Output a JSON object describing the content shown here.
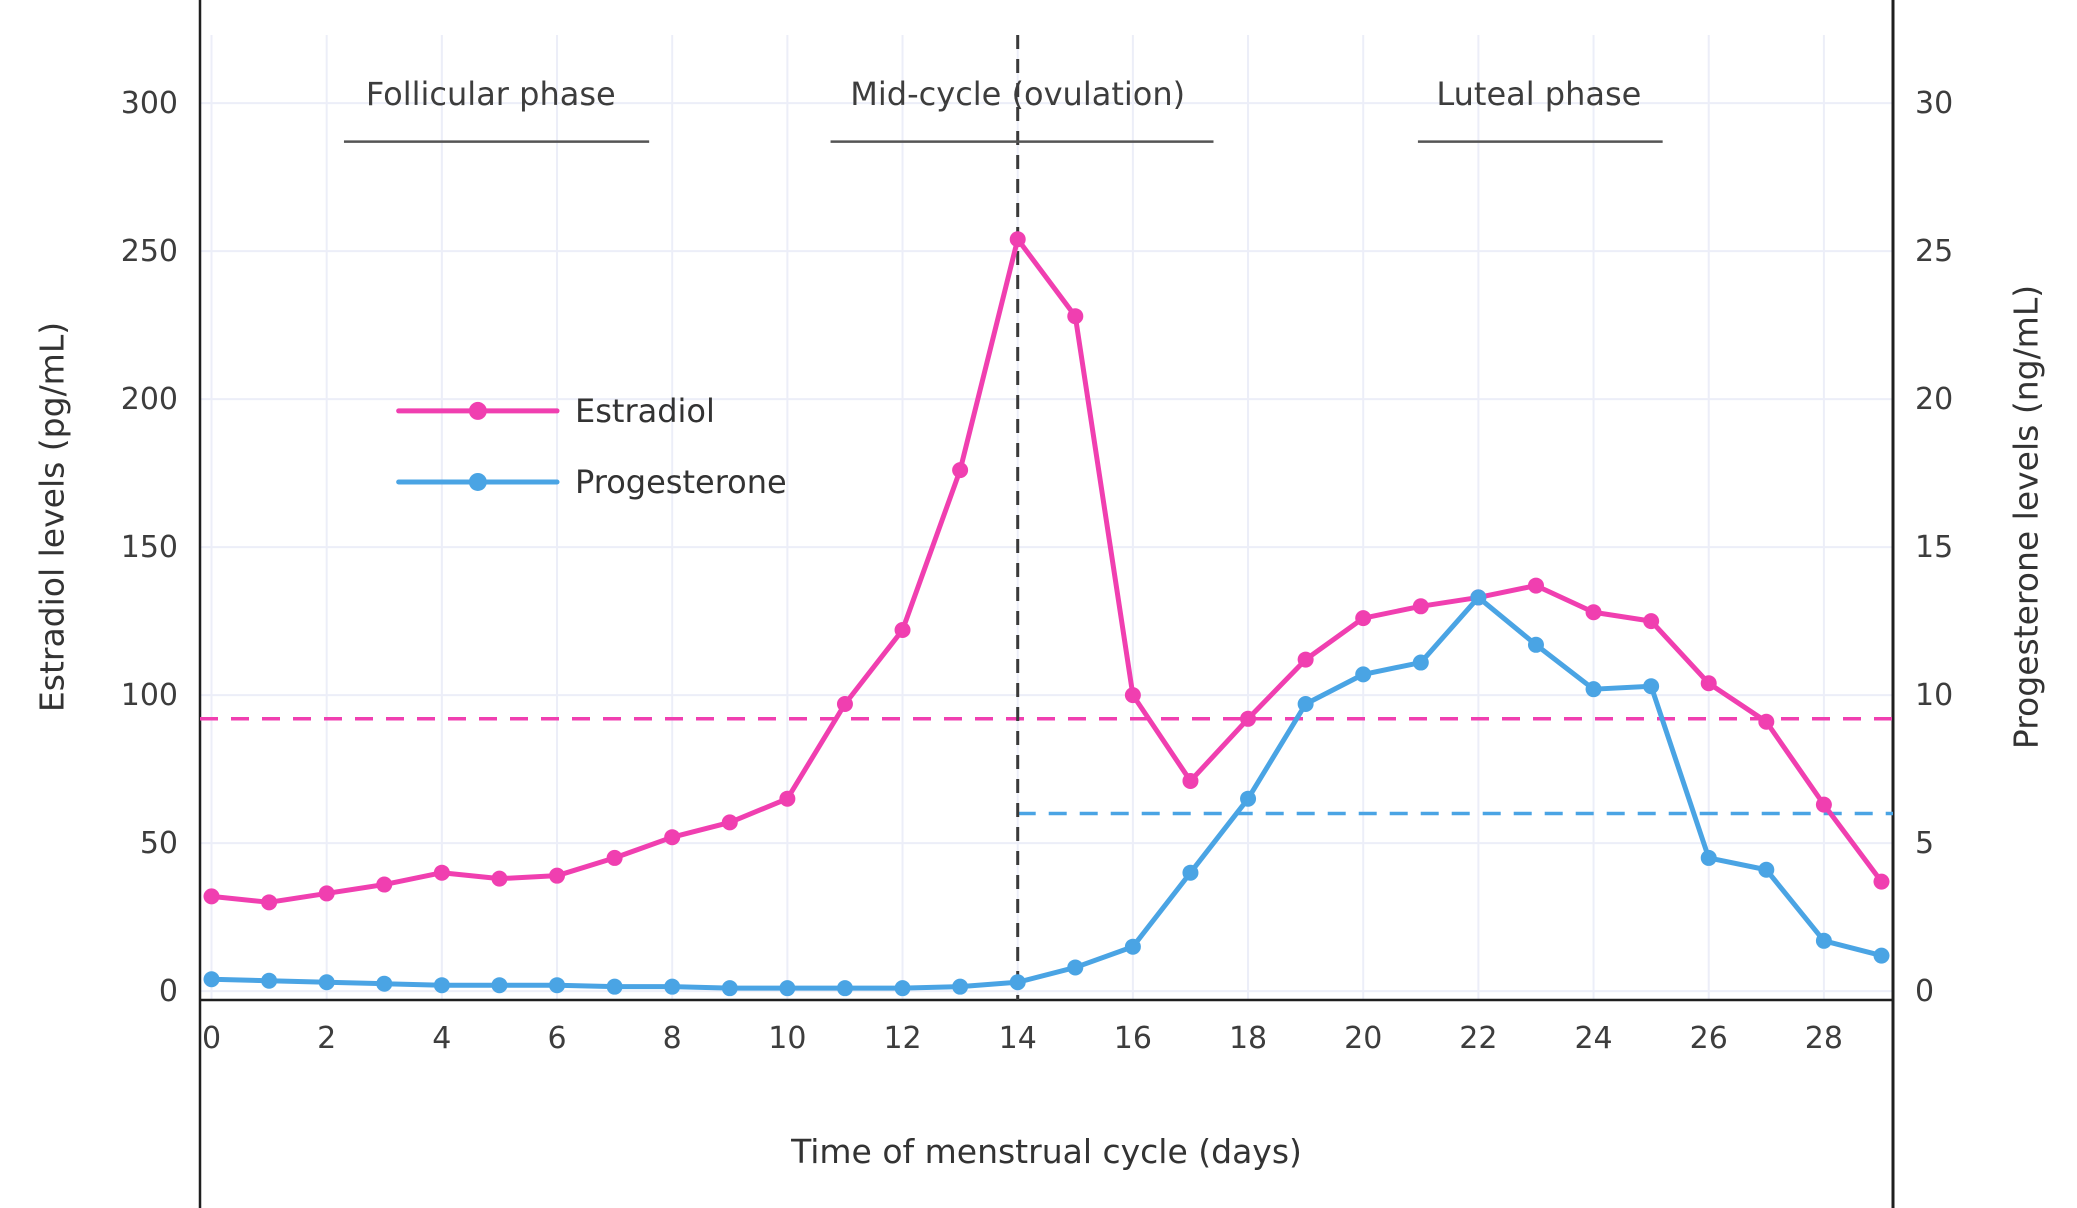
{
  "chart_data": {
    "type": "line",
    "title": "",
    "xlabel": "Time of menstrual cycle (days)",
    "ylabel_left": "Estradiol levels (pg/mL)",
    "ylabel_right": "Progesterone levels (ng/mL)",
    "x": [
      0,
      1,
      2,
      3,
      4,
      5,
      6,
      7,
      8,
      9,
      10,
      11,
      12,
      13,
      14,
      15,
      16,
      17,
      18,
      19,
      20,
      21,
      22,
      23,
      24,
      25,
      26,
      27,
      28,
      29
    ],
    "x_ticks": [
      0,
      2,
      4,
      6,
      8,
      10,
      12,
      14,
      16,
      18,
      20,
      22,
      24,
      26,
      28
    ],
    "y_ticks_left": [
      0,
      50,
      100,
      150,
      200,
      250,
      300
    ],
    "y_ticks_right": [
      0,
      5,
      10,
      15,
      20,
      25,
      30
    ],
    "xlim": [
      -0.2,
      29.2
    ],
    "ylim_left": [
      -3,
      323
    ],
    "ylim_right": [
      -0.3,
      32.3
    ],
    "grid": true,
    "legend_position": "upper-left-inside",
    "series": [
      {
        "name": "Estradiol",
        "axis": "left",
        "color": "#f03fb0",
        "values": [
          32,
          30,
          33,
          36,
          40,
          38,
          39,
          45,
          52,
          57,
          65,
          97,
          122,
          176,
          254,
          228,
          100,
          71,
          92,
          112,
          126,
          130,
          133,
          137,
          128,
          125,
          104,
          91,
          63,
          37
        ]
      },
      {
        "name": "Progesterone",
        "axis": "right",
        "color": "#4aa4e4",
        "values": [
          0.4,
          0.35,
          0.3,
          0.25,
          0.2,
          0.2,
          0.2,
          0.15,
          0.15,
          0.1,
          0.1,
          0.1,
          0.1,
          0.15,
          0.3,
          0.8,
          1.5,
          4.0,
          6.5,
          9.7,
          10.7,
          11.1,
          13.3,
          11.7,
          10.2,
          10.3,
          4.5,
          4.1,
          1.7,
          1.2
        ]
      }
    ],
    "reference_lines": [
      {
        "orientation": "horizontal",
        "axis": "left",
        "value": 92,
        "color": "#f03fb0",
        "from_day": -0.2,
        "to_day": 29.2
      },
      {
        "orientation": "horizontal",
        "axis": "right",
        "value": 6,
        "color": "#4aa4e4",
        "from_day": 14,
        "to_day": 29.2
      },
      {
        "orientation": "vertical",
        "day": 14,
        "color": "#3a3a3a"
      }
    ],
    "annotations": [
      {
        "label": "Follicular phase",
        "day": 4.85,
        "value": 303,
        "underline_from": 2.3,
        "underline_to": 7.6,
        "underline_value": 287
      },
      {
        "label": "Mid-cycle (ovulation)",
        "day": 14.0,
        "value": 303,
        "underline_from": 10.75,
        "underline_to": 17.4,
        "underline_value": 287
      },
      {
        "label": "Luteal phase",
        "day": 23.05,
        "value": 303,
        "underline_from": 20.95,
        "underline_to": 25.2,
        "underline_value": 287
      }
    ],
    "legend": {
      "start_day": 3.25,
      "line_length_days": 2.75,
      "rows": [
        {
          "label": "Estradiol",
          "color": "#f03fb0",
          "value": 196
        },
        {
          "label": "Progesterone",
          "color": "#4aa4e4",
          "value": 172
        }
      ]
    },
    "style": {
      "grid_color": "#eceef8",
      "axis_color": "#1f1f1f",
      "text_color": "#3d3d3d",
      "tick_font_size": 30,
      "annotation_font_size": 32,
      "legend_font_size": 32
    }
  }
}
